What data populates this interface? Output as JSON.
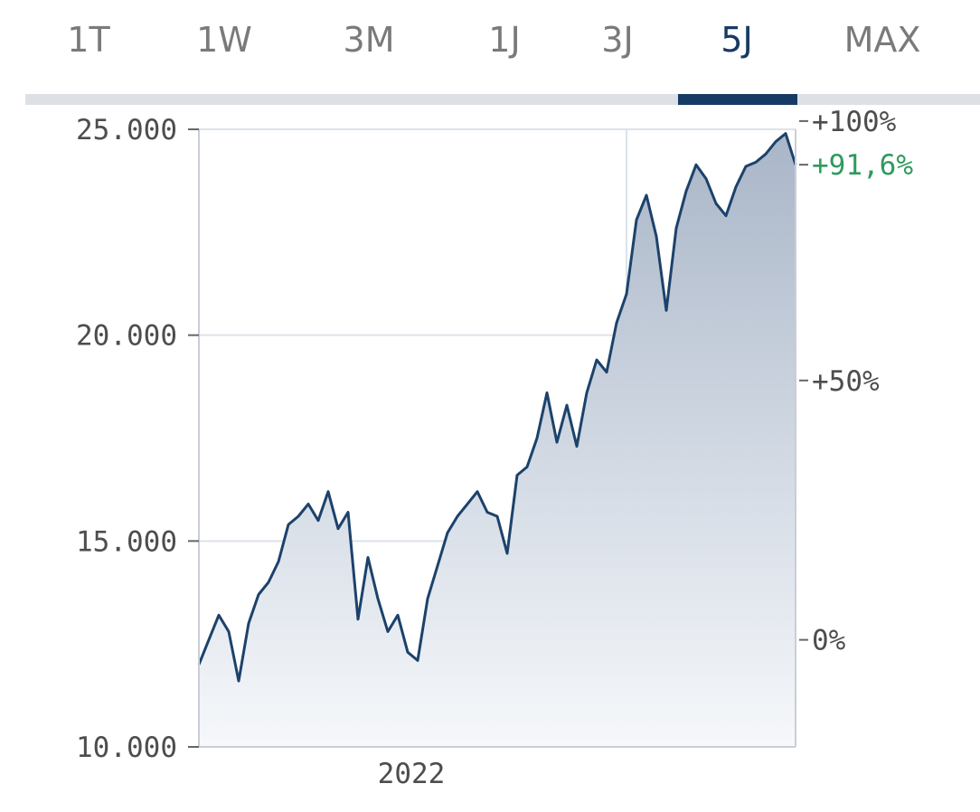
{
  "tabs": [
    {
      "label": "1T",
      "active": false
    },
    {
      "label": "1W",
      "active": false
    },
    {
      "label": "3M",
      "active": false
    },
    {
      "label": "1J",
      "active": false
    },
    {
      "label": "3J",
      "active": false
    },
    {
      "label": "5J",
      "active": true
    },
    {
      "label": "MAX",
      "active": false
    }
  ],
  "chart_data": {
    "type": "area",
    "x_range": [
      "2020-11",
      "2025-11"
    ],
    "x_ticks": [
      {
        "value": "2022",
        "label": "2022"
      }
    ],
    "ylim": [
      10000,
      25000
    ],
    "y_ticks": [
      {
        "value": 10000,
        "label": "10.000"
      },
      {
        "value": 15000,
        "label": "15.000"
      },
      {
        "value": 20000,
        "label": "20.000"
      },
      {
        "value": 25000,
        "label": "25.000"
      }
    ],
    "pct_ticks": [
      {
        "value": 12600,
        "label": "0%"
      },
      {
        "value": 18900,
        "label": "+50%"
      },
      {
        "value": 25200,
        "label": "+100%"
      }
    ],
    "last_value_label": "+91,6%",
    "last_value": 24140,
    "grid": true,
    "line_color": "#1c426b",
    "fill_color_top": "#a9b6c8",
    "fill_color_bottom": "#f6f8fb",
    "series": [
      {
        "x": [
          "2020-11",
          "2020-12",
          "2021-01",
          "2021-02",
          "2021-03",
          "2021-04",
          "2021-05",
          "2021-06",
          "2021-07",
          "2021-08",
          "2021-09",
          "2021-10",
          "2021-11",
          "2021-12",
          "2022-01",
          "2022-02",
          "2022-03",
          "2022-04",
          "2022-05",
          "2022-06",
          "2022-07",
          "2022-08",
          "2022-09",
          "2022-10",
          "2022-11",
          "2022-12",
          "2023-01",
          "2023-02",
          "2023-03",
          "2023-04",
          "2023-05",
          "2023-06",
          "2023-07",
          "2023-08",
          "2023-09",
          "2023-10",
          "2023-11",
          "2023-12",
          "2024-01",
          "2024-02",
          "2024-03",
          "2024-04",
          "2024-05",
          "2024-06",
          "2024-07",
          "2024-08",
          "2024-09",
          "2024-10",
          "2024-11",
          "2024-12",
          "2025-01",
          "2025-02",
          "2025-03",
          "2025-04",
          "2025-05",
          "2025-06",
          "2025-07",
          "2025-08",
          "2025-09",
          "2025-10",
          "2025-11"
        ],
        "values": [
          12000,
          12600,
          13200,
          12800,
          11600,
          13000,
          13700,
          14000,
          14500,
          15400,
          15600,
          15900,
          15500,
          16200,
          15300,
          15700,
          13100,
          14600,
          13600,
          12800,
          13200,
          12300,
          12100,
          13600,
          14400,
          15200,
          15600,
          15900,
          16200,
          15700,
          15600,
          14700,
          16600,
          16800,
          17500,
          18600,
          17400,
          18300,
          17300,
          18600,
          19400,
          19100,
          20300,
          21000,
          22800,
          23400,
          22400,
          20600,
          22600,
          23500,
          24140,
          23800,
          23200,
          22900,
          23600,
          24100,
          24200,
          24400,
          24700,
          24900,
          24140
        ]
      }
    ]
  }
}
